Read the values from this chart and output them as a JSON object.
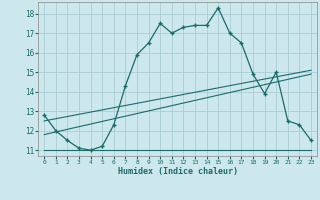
{
  "xlabel": "Humidex (Indice chaleur)",
  "bg_color": "#cce8ec",
  "grid_color": "#aacdd4",
  "line_color": "#1a6b6b",
  "xlim": [
    -0.5,
    23.5
  ],
  "ylim": [
    10.7,
    18.6
  ],
  "xtick_vals": [
    0,
    1,
    2,
    3,
    4,
    5,
    6,
    7,
    8,
    9,
    10,
    11,
    12,
    13,
    14,
    15,
    16,
    17,
    18,
    19,
    20,
    21,
    22,
    23
  ],
  "ytick_vals": [
    11,
    12,
    13,
    14,
    15,
    16,
    17,
    18
  ],
  "line1_x": [
    0,
    1,
    2,
    3,
    4,
    5,
    6,
    7,
    8,
    9,
    10,
    11,
    12,
    13,
    14,
    15,
    16,
    17,
    18,
    19,
    20,
    21,
    22,
    23
  ],
  "line1_y": [
    12.8,
    12.0,
    11.5,
    11.1,
    11.0,
    11.2,
    12.3,
    14.3,
    15.9,
    16.5,
    17.5,
    17.0,
    17.3,
    17.4,
    17.4,
    18.3,
    17.0,
    16.5,
    14.9,
    13.9,
    15.0,
    12.5,
    12.3,
    11.5
  ],
  "line2_x": [
    0,
    23
  ],
  "line2_y": [
    11.0,
    11.0
  ],
  "line3_x": [
    0,
    23
  ],
  "line3_y": [
    11.8,
    14.9
  ],
  "line4_x": [
    0,
    23
  ],
  "line4_y": [
    12.5,
    15.1
  ]
}
